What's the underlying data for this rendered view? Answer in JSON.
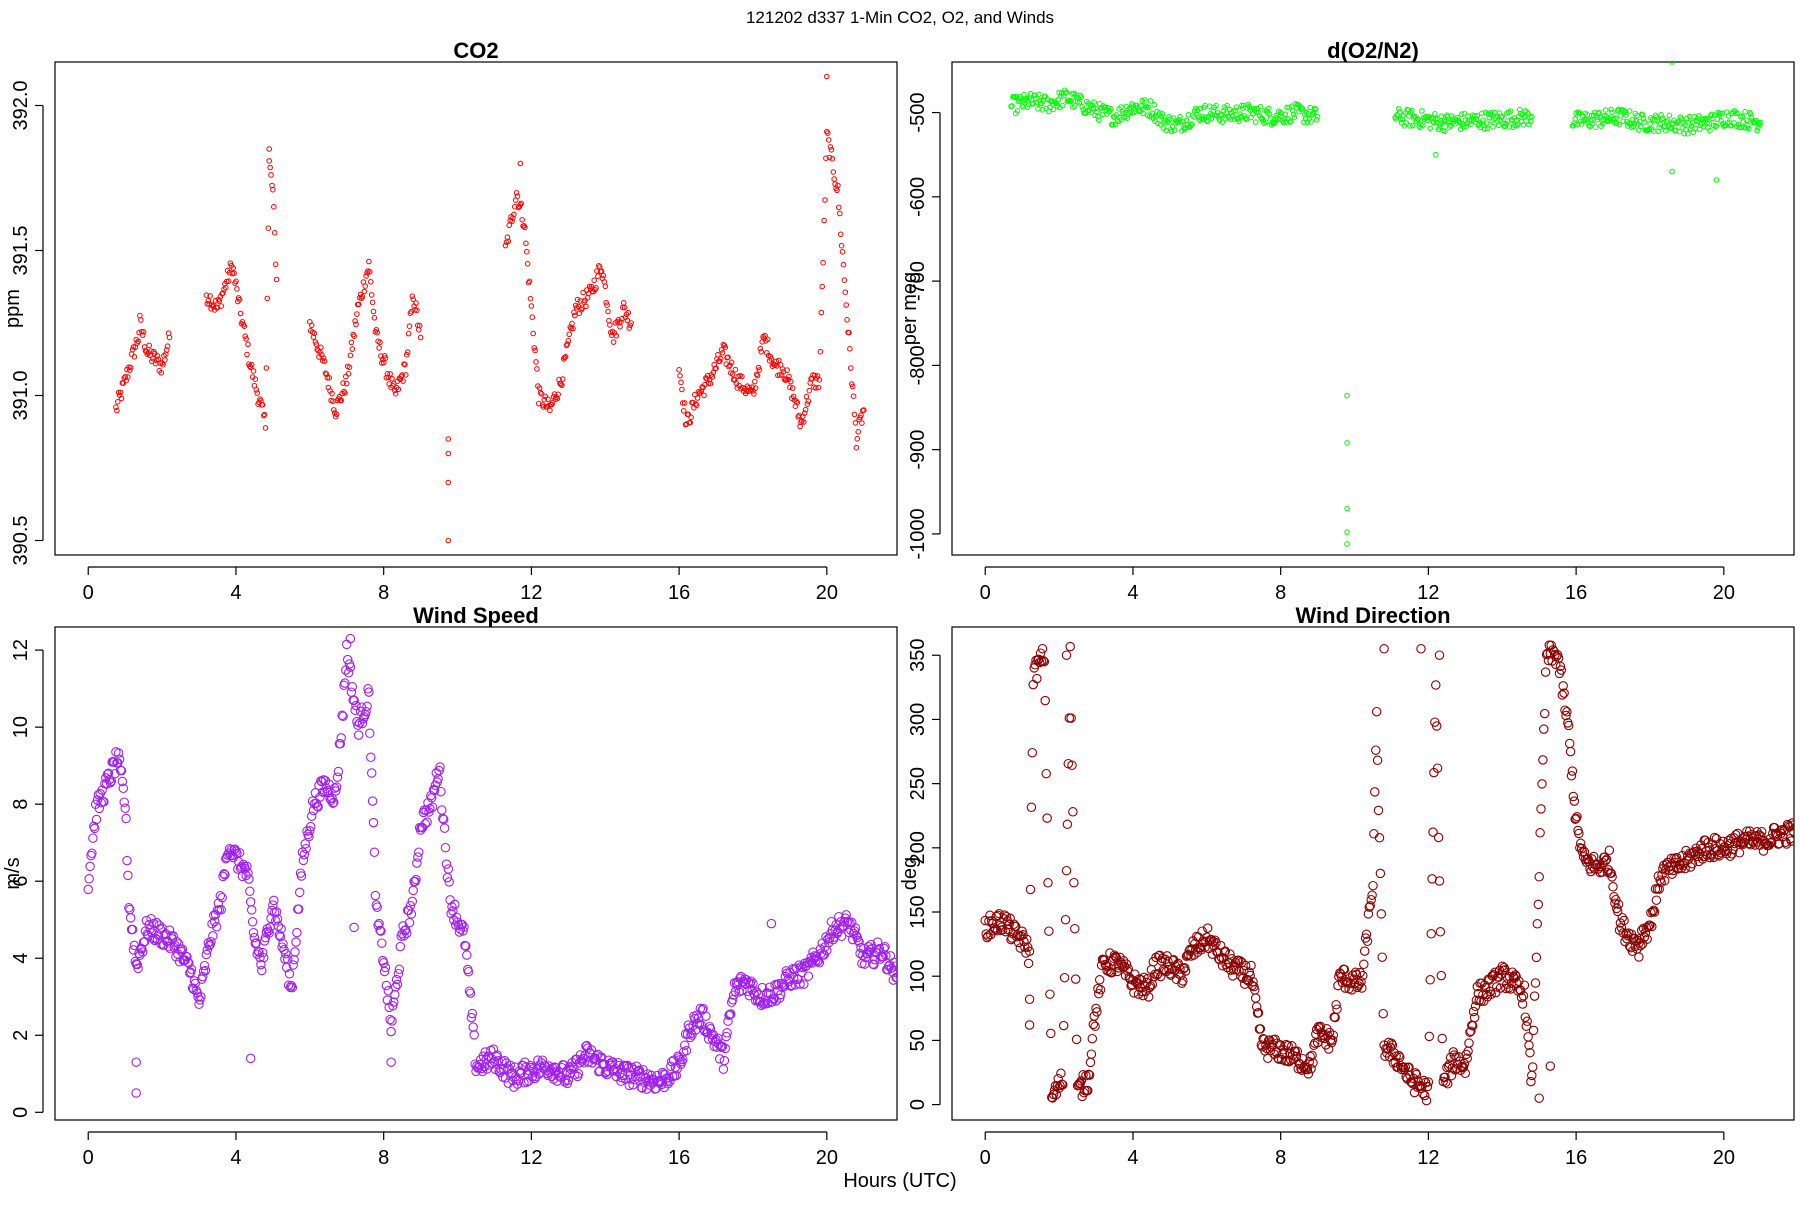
{
  "figure": {
    "title": "121202   d337   1-Min CO2, O2, and Winds",
    "xlabel": "Hours (UTC)"
  },
  "chart_data": [
    {
      "type": "scatter",
      "title": "CO2",
      "xlabel": "",
      "ylabel": "ppm",
      "color": "#ff0000",
      "marker_size": "small",
      "xlim": [
        -0.9,
        21.9
      ],
      "ylim": [
        390.45,
        392.15
      ],
      "xticks": [
        0,
        4,
        8,
        12,
        16,
        20
      ],
      "yticks": [
        390.5,
        391.0,
        391.5,
        392.0
      ],
      "ytick_labels": [
        "390.5",
        "391.0",
        "391.5",
        "392.0"
      ],
      "anchors": [
        [
          0.75,
          390.95
        ],
        [
          1.0,
          391.05
        ],
        [
          1.35,
          391.2
        ],
        [
          1.4,
          391.25
        ],
        [
          1.6,
          391.15
        ],
        [
          2.0,
          391.1
        ],
        [
          2.2,
          391.2
        ],
        [
          3.2,
          391.35
        ],
        [
          3.5,
          391.3
        ],
        [
          3.9,
          391.45
        ],
        [
          4.1,
          391.3
        ],
        [
          4.4,
          391.1
        ],
        [
          4.8,
          390.9
        ],
        [
          4.9,
          391.8
        ],
        [
          5.0,
          391.7
        ],
        [
          5.1,
          391.4
        ],
        [
          6.0,
          391.25
        ],
        [
          6.4,
          391.1
        ],
        [
          6.7,
          390.95
        ],
        [
          7.0,
          391.05
        ],
        [
          7.3,
          391.3
        ],
        [
          7.6,
          391.45
        ],
        [
          7.8,
          391.2
        ],
        [
          8.3,
          391.0
        ],
        [
          8.6,
          391.1
        ],
        [
          8.8,
          391.35
        ],
        [
          9.0,
          391.2
        ],
        [
          11.3,
          391.5
        ],
        [
          11.6,
          391.7
        ],
        [
          11.8,
          391.6
        ],
        [
          12.0,
          391.3
        ],
        [
          12.2,
          391.0
        ],
        [
          12.5,
          390.95
        ],
        [
          12.8,
          391.05
        ],
        [
          13.2,
          391.3
        ],
        [
          13.6,
          391.35
        ],
        [
          13.9,
          391.45
        ],
        [
          14.2,
          391.2
        ],
        [
          14.5,
          391.3
        ],
        [
          14.7,
          391.25
        ],
        [
          16.0,
          391.1
        ],
        [
          16.2,
          390.9
        ],
        [
          16.5,
          391.0
        ],
        [
          16.8,
          391.05
        ],
        [
          17.2,
          391.15
        ],
        [
          17.6,
          391.05
        ],
        [
          18.0,
          391.0
        ],
        [
          18.3,
          391.2
        ],
        [
          18.6,
          391.1
        ],
        [
          18.8,
          391.1
        ],
        [
          19.1,
          391.0
        ],
        [
          19.3,
          390.9
        ],
        [
          19.6,
          391.05
        ],
        [
          19.8,
          391.05
        ],
        [
          20.0,
          391.9
        ],
        [
          20.3,
          391.7
        ],
        [
          20.8,
          390.85
        ],
        [
          21.0,
          390.95
        ]
      ],
      "outliers": [
        [
          9.75,
          390.85
        ],
        [
          9.75,
          390.8
        ],
        [
          9.75,
          390.7
        ],
        [
          9.75,
          390.5
        ],
        [
          20.0,
          392.1
        ],
        [
          4.9,
          391.85
        ],
        [
          11.7,
          391.8
        ]
      ]
    },
    {
      "type": "scatter",
      "title": "d(O2/N2)",
      "xlabel": "",
      "ylabel": "per meg",
      "color": "#00ff00",
      "marker_size": "small",
      "xlim": [
        -0.9,
        21.9
      ],
      "ylim": [
        -1025,
        -440
      ],
      "xticks": [
        0,
        4,
        8,
        12,
        16,
        20
      ],
      "yticks": [
        -1000,
        -900,
        -800,
        -700,
        -600,
        -500
      ],
      "ytick_labels": [
        "-1000",
        "-900",
        "-800",
        "-700",
        "-600",
        "-500"
      ],
      "anchors": [
        [
          0.7,
          -492
        ],
        [
          1.2,
          -487
        ],
        [
          1.7,
          -490
        ],
        [
          2.2,
          -482
        ],
        [
          3.0,
          -498
        ],
        [
          3.5,
          -505
        ],
        [
          4.0,
          -493
        ],
        [
          4.5,
          -495
        ],
        [
          4.8,
          -510
        ],
        [
          5.2,
          -515
        ],
        [
          5.8,
          -500
        ],
        [
          6.5,
          -502
        ],
        [
          7.2,
          -500
        ],
        [
          7.8,
          -505
        ],
        [
          8.4,
          -500
        ],
        [
          9.0,
          -505
        ],
        [
          11.1,
          -505
        ],
        [
          11.8,
          -508
        ],
        [
          12.5,
          -512
        ],
        [
          13.2,
          -510
        ],
        [
          14.0,
          -508
        ],
        [
          14.8,
          -505
        ],
        [
          15.9,
          -510
        ],
        [
          16.5,
          -508
        ],
        [
          17.2,
          -505
        ],
        [
          17.8,
          -512
        ],
        [
          18.5,
          -512
        ],
        [
          19.0,
          -515
        ],
        [
          19.6,
          -512
        ],
        [
          20.1,
          -505
        ],
        [
          20.8,
          -510
        ],
        [
          21.0,
          -512
        ]
      ],
      "outliers": [
        [
          9.8,
          -836
        ],
        [
          9.8,
          -892
        ],
        [
          9.8,
          -970
        ],
        [
          9.8,
          -998
        ],
        [
          9.8,
          -1012
        ],
        [
          18.6,
          -440
        ],
        [
          18.6,
          -570
        ],
        [
          19.8,
          -580
        ],
        [
          12.2,
          -550
        ]
      ]
    },
    {
      "type": "scatter",
      "title": "Wind Speed",
      "xlabel": "",
      "ylabel": "m/s",
      "color": "#a020f0",
      "marker_size": "large",
      "xlim": [
        -0.9,
        21.9
      ],
      "ylim": [
        -0.2,
        12.6
      ],
      "xticks": [
        0,
        4,
        8,
        12,
        16,
        20
      ],
      "yticks": [
        0,
        2,
        4,
        6,
        8,
        10,
        12
      ],
      "ytick_labels": [
        "0",
        "2",
        "4",
        "6",
        "8",
        "10",
        "12"
      ],
      "anchors": [
        [
          0.0,
          6.0
        ],
        [
          0.2,
          7.8
        ],
        [
          0.5,
          8.5
        ],
        [
          0.8,
          9.2
        ],
        [
          1.0,
          8.0
        ],
        [
          1.1,
          5.5
        ],
        [
          1.3,
          3.8
        ],
        [
          1.6,
          4.8
        ],
        [
          2.0,
          4.6
        ],
        [
          2.4,
          4.3
        ],
        [
          2.8,
          3.6
        ],
        [
          3.0,
          2.8
        ],
        [
          3.3,
          4.5
        ],
        [
          3.6,
          5.5
        ],
        [
          3.8,
          7.0
        ],
        [
          4.0,
          6.6
        ],
        [
          4.3,
          6.2
        ],
        [
          4.5,
          4.5
        ],
        [
          4.7,
          3.8
        ],
        [
          5.0,
          5.5
        ],
        [
          5.3,
          4.2
        ],
        [
          5.5,
          3.2
        ],
        [
          5.8,
          6.5
        ],
        [
          6.1,
          8.0
        ],
        [
          6.4,
          8.5
        ],
        [
          6.7,
          8.2
        ],
        [
          6.9,
          10.5
        ],
        [
          7.0,
          12.0
        ],
        [
          7.3,
          10.0
        ],
        [
          7.6,
          10.8
        ],
        [
          7.8,
          5.2
        ],
        [
          8.0,
          4.0
        ],
        [
          8.2,
          2.2
        ],
        [
          8.5,
          4.5
        ],
        [
          8.8,
          5.5
        ],
        [
          9.0,
          7.5
        ],
        [
          9.3,
          8.0
        ],
        [
          9.5,
          9.0
        ],
        [
          9.8,
          5.5
        ],
        [
          10.2,
          4.5
        ],
        [
          10.5,
          1.2
        ],
        [
          11.0,
          1.4
        ],
        [
          11.5,
          0.9
        ],
        [
          12.0,
          1.1
        ],
        [
          12.5,
          1.2
        ],
        [
          13.0,
          0.9
        ],
        [
          13.5,
          1.5
        ],
        [
          14.0,
          1.2
        ],
        [
          14.5,
          1.0
        ],
        [
          15.0,
          0.9
        ],
        [
          15.5,
          0.8
        ],
        [
          16.0,
          1.2
        ],
        [
          16.3,
          2.2
        ],
        [
          16.6,
          2.5
        ],
        [
          16.9,
          2.0
        ],
        [
          17.2,
          1.4
        ],
        [
          17.5,
          3.2
        ],
        [
          17.8,
          3.4
        ],
        [
          18.2,
          3.0
        ],
        [
          18.6,
          3.1
        ],
        [
          19.0,
          3.5
        ],
        [
          19.4,
          3.6
        ],
        [
          19.8,
          4.1
        ],
        [
          20.2,
          4.8
        ],
        [
          20.6,
          4.9
        ],
        [
          21.0,
          4.0
        ],
        [
          21.5,
          4.2
        ],
        [
          21.9,
          3.5
        ]
      ],
      "outliers": [
        [
          1.3,
          0.5
        ],
        [
          1.3,
          1.3
        ],
        [
          4.4,
          1.4
        ],
        [
          7.1,
          12.3
        ],
        [
          7.2,
          4.8
        ],
        [
          18.5,
          4.9
        ],
        [
          8.2,
          1.3
        ]
      ]
    },
    {
      "type": "scatter",
      "title": "Wind Direction",
      "xlabel": "",
      "ylabel": "deg",
      "color": "#8b0000",
      "marker_size": "large",
      "xlim": [
        -0.9,
        21.9
      ],
      "ylim": [
        -12,
        372
      ],
      "xticks": [
        0,
        4,
        8,
        12,
        16,
        20
      ],
      "yticks": [
        0,
        50,
        100,
        150,
        200,
        250,
        300,
        350
      ],
      "ytick_labels": [
        "0",
        "50",
        "100",
        "150",
        "200",
        "250",
        "300",
        "350"
      ],
      "anchors": [
        [
          0.0,
          138
        ],
        [
          0.5,
          143
        ],
        [
          0.8,
          132
        ],
        [
          1.1,
          125
        ],
        [
          1.2,
          115
        ],
        [
          1.3,
          335
        ],
        [
          1.6,
          350
        ],
        [
          1.8,
          5
        ],
        [
          2.1,
          20
        ],
        [
          2.3,
          350
        ],
        [
          2.5,
          10
        ],
        [
          2.8,
          20
        ],
        [
          2.9,
          55
        ],
        [
          3.2,
          110
        ],
        [
          3.6,
          110
        ],
        [
          4.0,
          95
        ],
        [
          4.4,
          90
        ],
        [
          4.6,
          108
        ],
        [
          5.0,
          108
        ],
        [
          5.3,
          100
        ],
        [
          5.6,
          120
        ],
        [
          6.0,
          130
        ],
        [
          6.4,
          115
        ],
        [
          6.8,
          105
        ],
        [
          7.2,
          100
        ],
        [
          7.5,
          45
        ],
        [
          8.0,
          42
        ],
        [
          8.5,
          35
        ],
        [
          8.8,
          30
        ],
        [
          9.0,
          55
        ],
        [
          9.4,
          50
        ],
        [
          9.6,
          100
        ],
        [
          10.0,
          95
        ],
        [
          10.2,
          95
        ],
        [
          10.5,
          175
        ],
        [
          10.6,
          300
        ],
        [
          10.8,
          45
        ],
        [
          11.2,
          35
        ],
        [
          11.5,
          20
        ],
        [
          12.0,
          10
        ],
        [
          12.2,
          335
        ],
        [
          12.4,
          15
        ],
        [
          12.7,
          35
        ],
        [
          13.0,
          30
        ],
        [
          13.3,
          85
        ],
        [
          13.6,
          90
        ],
        [
          14.0,
          100
        ],
        [
          14.3,
          95
        ],
        [
          14.6,
          85
        ],
        [
          14.8,
          15
        ],
        [
          15.2,
          350
        ],
        [
          15.5,
          350
        ],
        [
          15.8,
          290
        ],
        [
          16.0,
          220
        ],
        [
          16.2,
          190
        ],
        [
          16.6,
          185
        ],
        [
          16.9,
          190
        ],
        [
          17.2,
          140
        ],
        [
          17.6,
          125
        ],
        [
          18.0,
          140
        ],
        [
          18.3,
          180
        ],
        [
          18.7,
          185
        ],
        [
          19.0,
          190
        ],
        [
          19.5,
          200
        ],
        [
          20.0,
          200
        ],
        [
          20.5,
          205
        ],
        [
          21.0,
          205
        ],
        [
          21.5,
          210
        ],
        [
          21.9,
          212
        ]
      ],
      "outliers": [
        [
          1.2,
          62
        ],
        [
          1.2,
          82
        ],
        [
          10.8,
          355
        ],
        [
          11.8,
          355
        ],
        [
          12.3,
          350
        ],
        [
          15.0,
          5
        ],
        [
          15.3,
          30
        ],
        [
          17.7,
          115
        ],
        [
          2.2,
          350
        ]
      ]
    }
  ]
}
